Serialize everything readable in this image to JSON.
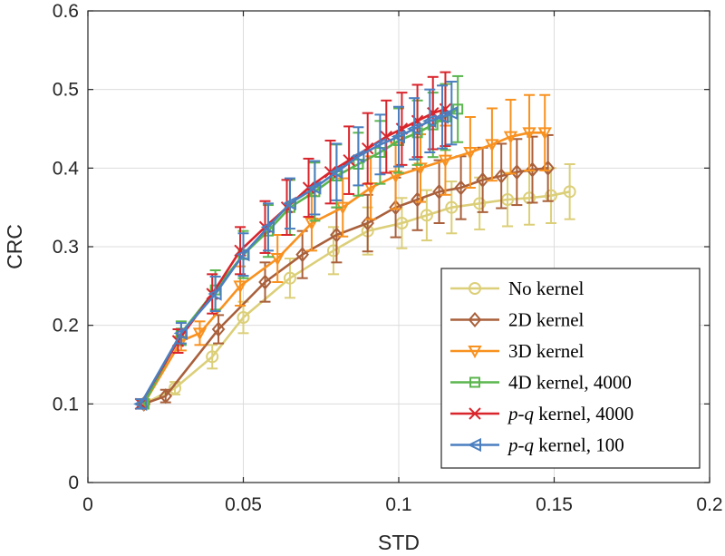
{
  "chart_data": {
    "type": "line",
    "title": "",
    "xlabel": "STD",
    "ylabel": "CRC",
    "xlim": [
      0,
      0.2
    ],
    "ylim": [
      0,
      0.6
    ],
    "xticks": [
      0,
      0.05,
      0.1,
      0.15,
      0.2
    ],
    "xtick_labels": [
      "0",
      "0.05",
      "0.1",
      "0.15",
      "0.2"
    ],
    "yticks": [
      0,
      0.1,
      0.2,
      0.3,
      0.4,
      0.5,
      0.6
    ],
    "ytick_labels": [
      "0",
      "0.1",
      "0.2",
      "0.3",
      "0.4",
      "0.5",
      "0.6"
    ],
    "grid": true,
    "legend_position": "bottom-right",
    "series": [
      {
        "name": "No kernel",
        "color": "#dccf79",
        "marker": "circle",
        "x": [
          0.018,
          0.028,
          0.04,
          0.05,
          0.065,
          0.079,
          0.09,
          0.101,
          0.109,
          0.117,
          0.126,
          0.135,
          0.142,
          0.149,
          0.155
        ],
        "y": [
          0.1,
          0.12,
          0.16,
          0.21,
          0.26,
          0.295,
          0.32,
          0.33,
          0.34,
          0.35,
          0.355,
          0.36,
          0.362,
          0.365,
          0.37
        ],
        "err": [
          0.005,
          0.008,
          0.015,
          0.02,
          0.025,
          0.03,
          0.03,
          0.032,
          0.032,
          0.033,
          0.033,
          0.034,
          0.034,
          0.035,
          0.035
        ]
      },
      {
        "name": "2D kernel",
        "color": "#a9603b",
        "marker": "diamond",
        "x": [
          0.018,
          0.025,
          0.042,
          0.057,
          0.069,
          0.08,
          0.09,
          0.099,
          0.106,
          0.113,
          0.12,
          0.127,
          0.133,
          0.138,
          0.143,
          0.148
        ],
        "y": [
          0.1,
          0.11,
          0.195,
          0.255,
          0.29,
          0.315,
          0.33,
          0.35,
          0.36,
          0.37,
          0.375,
          0.385,
          0.39,
          0.395,
          0.398,
          0.4
        ],
        "err": [
          0.005,
          0.008,
          0.018,
          0.025,
          0.03,
          0.035,
          0.036,
          0.038,
          0.039,
          0.04,
          0.04,
          0.041,
          0.041,
          0.042,
          0.042,
          0.042
        ]
      },
      {
        "name": "3D kernel",
        "color": "#f8911f",
        "marker": "triangle-down",
        "x": [
          0.018,
          0.03,
          0.036,
          0.049,
          0.061,
          0.072,
          0.082,
          0.091,
          0.099,
          0.107,
          0.115,
          0.123,
          0.13,
          0.136,
          0.142,
          0.147
        ],
        "y": [
          0.1,
          0.18,
          0.19,
          0.25,
          0.285,
          0.33,
          0.35,
          0.375,
          0.39,
          0.4,
          0.41,
          0.42,
          0.43,
          0.44,
          0.445,
          0.445
        ],
        "err": [
          0.006,
          0.012,
          0.015,
          0.025,
          0.03,
          0.035,
          0.037,
          0.04,
          0.042,
          0.043,
          0.044,
          0.045,
          0.046,
          0.047,
          0.048,
          0.048
        ]
      },
      {
        "name": "4D kernel, 4000",
        "color": "#5bb54f",
        "marker": "square",
        "x": [
          0.018,
          0.03,
          0.041,
          0.05,
          0.058,
          0.065,
          0.073,
          0.08,
          0.087,
          0.094,
          0.1,
          0.106,
          0.111,
          0.115,
          0.119
        ],
        "y": [
          0.1,
          0.19,
          0.245,
          0.29,
          0.32,
          0.35,
          0.37,
          0.39,
          0.405,
          0.42,
          0.435,
          0.445,
          0.455,
          0.465,
          0.475
        ],
        "err": [
          0.006,
          0.015,
          0.025,
          0.03,
          0.033,
          0.035,
          0.037,
          0.04,
          0.04,
          0.04,
          0.041,
          0.041,
          0.041,
          0.042,
          0.042
        ]
      },
      {
        "name": "p-q kernel, 4000",
        "color": "#d9252c",
        "marker": "x",
        "x": [
          0.017,
          0.029,
          0.04,
          0.049,
          0.057,
          0.064,
          0.071,
          0.078,
          0.084,
          0.09,
          0.096,
          0.101,
          0.106,
          0.111,
          0.115
        ],
        "y": [
          0.1,
          0.18,
          0.24,
          0.295,
          0.325,
          0.35,
          0.375,
          0.395,
          0.41,
          0.425,
          0.44,
          0.45,
          0.46,
          0.47,
          0.475
        ],
        "err": [
          0.006,
          0.015,
          0.025,
          0.03,
          0.033,
          0.035,
          0.037,
          0.04,
          0.043,
          0.045,
          0.046,
          0.046,
          0.046,
          0.046,
          0.047
        ]
      },
      {
        "name": "p-q kernel, 100",
        "color": "#4b7fc0",
        "marker": "triangle-left",
        "x": [
          0.017,
          0.03,
          0.041,
          0.05,
          0.058,
          0.065,
          0.073,
          0.08,
          0.087,
          0.094,
          0.1,
          0.105,
          0.11,
          0.114,
          0.117
        ],
        "y": [
          0.1,
          0.19,
          0.24,
          0.29,
          0.325,
          0.355,
          0.375,
          0.395,
          0.415,
          0.43,
          0.44,
          0.45,
          0.46,
          0.465,
          0.47
        ],
        "err": [
          0.006,
          0.013,
          0.022,
          0.027,
          0.03,
          0.032,
          0.034,
          0.036,
          0.037,
          0.038,
          0.038,
          0.039,
          0.04,
          0.04,
          0.04
        ]
      }
    ],
    "legend_labels": [
      {
        "pre": "",
        "italic": "",
        "post": "No kernel"
      },
      {
        "pre": "",
        "italic": "",
        "post": "2D kernel"
      },
      {
        "pre": "",
        "italic": "",
        "post": "3D kernel"
      },
      {
        "pre": "",
        "italic": "",
        "post": "4D kernel, 4000"
      },
      {
        "pre": "",
        "italic": "p-q",
        "post": " kernel, 4000"
      },
      {
        "pre": "",
        "italic": "p-q",
        "post": " kernel, 100"
      }
    ]
  }
}
